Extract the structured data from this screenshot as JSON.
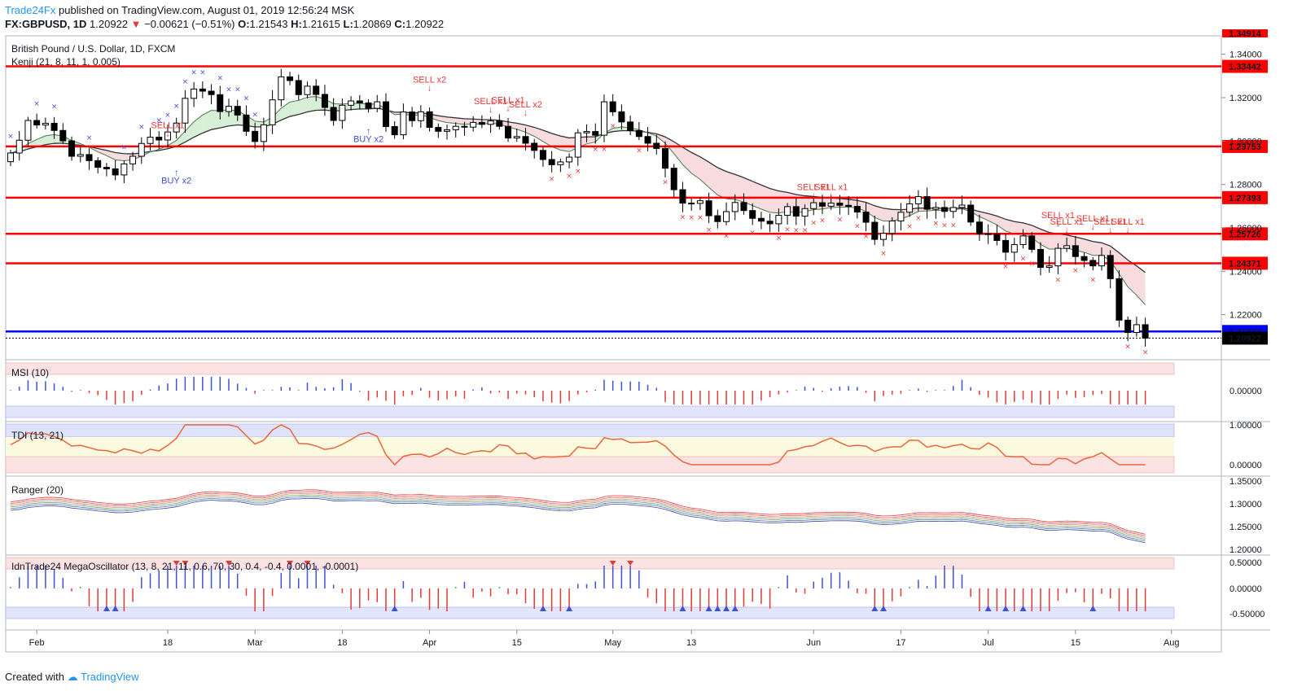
{
  "header": {
    "publisher": "Trade24Fx",
    "published_text": "published on TradingView.com, August 01, 2019 12:56:24 MSK",
    "symbol": "FX:GBPUSD, 1D",
    "last": "1.20922",
    "change": "−0.00621 (−0.51%)",
    "o_label": "O:",
    "o": "1.21543",
    "h_label": "H:",
    "h": "1.21615",
    "l_label": "L:",
    "l": "1.20869",
    "c_label": "C:",
    "c": "1.20922"
  },
  "footer": {
    "created_with": "Created with",
    "brand": "TradingView"
  },
  "colors": {
    "up": "#ffffff",
    "down": "#000000",
    "level": "#ff0000",
    "support": "#0000ff",
    "sell": "#e53935",
    "buy": "#3f51d5"
  },
  "chart_data": {
    "type": "candlestick",
    "title": "British Pound / U.S. Dollar, 1D, FXCM",
    "indicator": "Kenji (21, 8, 11, 1, 0.005)",
    "x_labels": [
      "Feb",
      "18",
      "Mar",
      "18",
      "Apr",
      "15",
      "May",
      "13",
      "Jun",
      "17",
      "Jul",
      "15",
      "Aug"
    ],
    "y_ticks": [
      "1.34000",
      "1.32000",
      "1.30000",
      "1.28000",
      "1.26000",
      "1.24000",
      "1.22000"
    ],
    "ylim": [
      1.2015,
      1.3485
    ],
    "levels": [
      {
        "value": 1.33442,
        "label": "1.33442"
      },
      {
        "value": 1.29753,
        "label": "1.29753"
      },
      {
        "value": 1.27393,
        "label": "1.27393"
      },
      {
        "value": 1.25726,
        "label": "1.25726"
      },
      {
        "value": 1.24371,
        "label": "1.24371"
      }
    ],
    "support": {
      "value": 1.21227,
      "label": "1.21227"
    },
    "last_price": {
      "value": 1.20922,
      "label": "1.20922"
    },
    "top_partial_label": "1.34914",
    "closes": [
      1.2945,
      1.3004,
      1.3095,
      1.3074,
      1.3082,
      1.3049,
      1.3001,
      1.293,
      1.2938,
      1.291,
      1.2879,
      1.2872,
      1.2844,
      1.2895,
      1.293,
      1.2989,
      1.3018,
      1.3005,
      1.3042,
      1.3083,
      1.3197,
      1.324,
      1.323,
      1.3214,
      1.3136,
      1.316,
      1.312,
      1.3045,
      1.2998,
      1.3075,
      1.319,
      1.3296,
      1.3279,
      1.3214,
      1.3253,
      1.3215,
      1.3155,
      1.3095,
      1.3165,
      1.3185,
      1.3176,
      1.3151,
      1.3181,
      1.3067,
      1.3029,
      1.3134,
      1.3094,
      1.3135,
      1.3063,
      1.3045,
      1.3052,
      1.3068,
      1.3064,
      1.3086,
      1.3077,
      1.3093,
      1.3068,
      1.3014,
      1.3021,
      1.299,
      1.2957,
      1.2915,
      1.2891,
      1.2904,
      1.2926,
      1.3038,
      1.3044,
      1.3027,
      1.3181,
      1.3135,
      1.3088,
      1.3048,
      1.3021,
      1.299,
      1.2966,
      1.2875,
      1.2776,
      1.2714,
      1.2713,
      1.2725,
      1.2656,
      1.2629,
      1.2675,
      1.2717,
      1.268,
      1.2644,
      1.2631,
      1.2619,
      1.2658,
      1.2698,
      1.2654,
      1.2689,
      1.2716,
      1.27,
      1.2714,
      1.2704,
      1.2699,
      1.2673,
      1.2626,
      1.2547,
      1.2575,
      1.2632,
      1.2672,
      1.2711,
      1.2744,
      1.2686,
      1.2694,
      1.2676,
      1.2694,
      1.2705,
      1.2627,
      1.2573,
      1.2571,
      1.2542,
      1.2488,
      1.2523,
      1.2563,
      1.2501,
      1.2418,
      1.2425,
      1.2506,
      1.2518,
      1.2468,
      1.245,
      1.2425,
      1.2473,
      1.2366,
      1.2175,
      1.2118,
      1.2154,
      1.2092
    ],
    "sell_signals": [
      {
        "index": 18,
        "text": "SELL x1",
        "value": 1.306
      },
      {
        "index": 48,
        "text": "SELL x2",
        "value": 1.327
      },
      {
        "index": 55,
        "text": "SELL x1",
        "value": 1.317
      },
      {
        "index": 57,
        "text": "SELL x1",
        "value": 1.3175
      },
      {
        "index": 59,
        "text": "SELL x2",
        "value": 1.3155
      },
      {
        "index": 92,
        "text": "SELL x1",
        "value": 1.2775
      },
      {
        "index": 94,
        "text": "SELL x1",
        "value": 1.2775
      },
      {
        "index": 120,
        "text": "SELL x1",
        "value": 1.2645
      },
      {
        "index": 121,
        "text": "SELL x1",
        "value": 1.2615
      },
      {
        "index": 124,
        "text": "SELL x1",
        "value": 1.263
      },
      {
        "index": 126,
        "text": "SELL x1",
        "value": 1.2615
      },
      {
        "index": 128,
        "text": "SELL x1",
        "value": 1.2615
      }
    ],
    "buy_signals": [
      {
        "index": 19,
        "text": "BUY x2",
        "value": 1.2805
      },
      {
        "index": 41,
        "text": "BUY x2",
        "value": 1.2995
      }
    ],
    "panes": [
      {
        "name": "MSI (10)",
        "ticks": [
          "0.00000"
        ]
      },
      {
        "name": "TDI (13, 21)",
        "ticks": [
          "1.00000",
          "0.00000"
        ]
      },
      {
        "name": "Ranger (20)",
        "ticks": [
          "1.35000",
          "1.30000",
          "1.25000",
          "1.20000"
        ]
      },
      {
        "name": "IdnTrade24 MegaOscillator (13, 8, 21, 11, 0.6, 70, 30, 0.4, -0.4, 0.0001, -0.0001)",
        "ticks": [
          "0.50000",
          "0.00000",
          "-0.50000"
        ]
      }
    ]
  }
}
